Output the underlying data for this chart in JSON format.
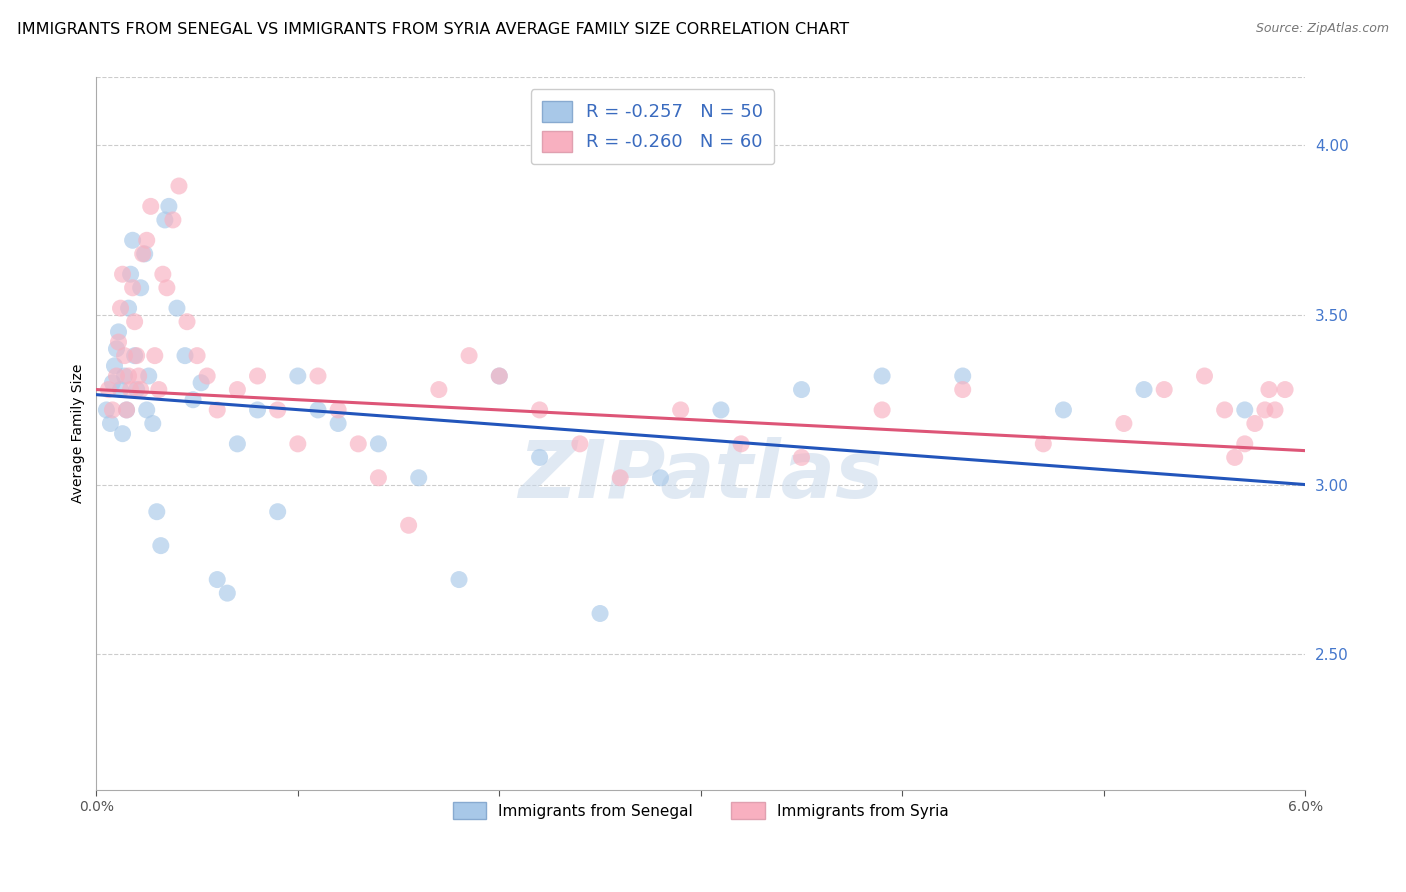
{
  "title": "IMMIGRANTS FROM SENEGAL VS IMMIGRANTS FROM SYRIA AVERAGE FAMILY SIZE CORRELATION CHART",
  "source": "Source: ZipAtlas.com",
  "ylabel": "Average Family Size",
  "right_yticks": [
    2.5,
    3.0,
    3.5,
    4.0
  ],
  "xmin": 0.0,
  "xmax": 6.0,
  "ymin": 2.1,
  "ymax": 4.2,
  "senegal_R": -0.257,
  "senegal_N": 50,
  "syria_R": -0.26,
  "syria_N": 60,
  "blue_scatter_color": "#a8c8e8",
  "pink_scatter_color": "#f8b0c0",
  "blue_line_color": "#2255bb",
  "pink_line_color": "#dd5577",
  "watermark": "ZIPatlas",
  "title_fontsize": 11.5,
  "source_fontsize": 9,
  "axis_label_fontsize": 10,
  "tick_fontsize": 10,
  "legend_fontsize": 12,
  "senegal_x": [
    0.05,
    0.07,
    0.08,
    0.09,
    0.1,
    0.11,
    0.12,
    0.13,
    0.14,
    0.15,
    0.16,
    0.17,
    0.18,
    0.19,
    0.2,
    0.22,
    0.24,
    0.25,
    0.26,
    0.28,
    0.3,
    0.32,
    0.34,
    0.36,
    0.4,
    0.44,
    0.48,
    0.52,
    0.6,
    0.65,
    0.7,
    0.8,
    0.9,
    1.0,
    1.1,
    1.2,
    1.4,
    1.6,
    1.8,
    2.0,
    2.2,
    2.5,
    2.8,
    3.1,
    3.5,
    3.9,
    4.3,
    4.8,
    5.2,
    5.7
  ],
  "senegal_y": [
    3.22,
    3.18,
    3.3,
    3.35,
    3.4,
    3.45,
    3.28,
    3.15,
    3.32,
    3.22,
    3.52,
    3.62,
    3.72,
    3.38,
    3.28,
    3.58,
    3.68,
    3.22,
    3.32,
    3.18,
    2.92,
    2.82,
    3.78,
    3.82,
    3.52,
    3.38,
    3.25,
    3.3,
    2.72,
    2.68,
    3.12,
    3.22,
    2.92,
    3.32,
    3.22,
    3.18,
    3.12,
    3.02,
    2.72,
    3.32,
    3.08,
    2.62,
    3.02,
    3.22,
    3.28,
    3.32,
    3.32,
    3.22,
    3.28,
    3.22
  ],
  "syria_x": [
    0.06,
    0.08,
    0.1,
    0.11,
    0.12,
    0.13,
    0.14,
    0.15,
    0.16,
    0.17,
    0.18,
    0.19,
    0.2,
    0.21,
    0.22,
    0.23,
    0.25,
    0.27,
    0.29,
    0.31,
    0.33,
    0.35,
    0.38,
    0.41,
    0.45,
    0.5,
    0.55,
    0.6,
    0.7,
    0.8,
    0.9,
    1.0,
    1.1,
    1.2,
    1.3,
    1.4,
    1.55,
    1.7,
    1.85,
    2.0,
    2.2,
    2.4,
    2.6,
    2.9,
    3.2,
    3.5,
    3.9,
    4.3,
    4.7,
    5.1,
    5.3,
    5.5,
    5.6,
    5.65,
    5.7,
    5.75,
    5.8,
    5.82,
    5.85,
    5.9
  ],
  "syria_y": [
    3.28,
    3.22,
    3.32,
    3.42,
    3.52,
    3.62,
    3.38,
    3.22,
    3.32,
    3.28,
    3.58,
    3.48,
    3.38,
    3.32,
    3.28,
    3.68,
    3.72,
    3.82,
    3.38,
    3.28,
    3.62,
    3.58,
    3.78,
    3.88,
    3.48,
    3.38,
    3.32,
    3.22,
    3.28,
    3.32,
    3.22,
    3.12,
    3.32,
    3.22,
    3.12,
    3.02,
    2.88,
    3.28,
    3.38,
    3.32,
    3.22,
    3.12,
    3.02,
    3.22,
    3.12,
    3.08,
    3.22,
    3.28,
    3.12,
    3.18,
    3.28,
    3.32,
    3.22,
    3.08,
    3.12,
    3.18,
    3.22,
    3.28,
    3.22,
    3.28
  ]
}
